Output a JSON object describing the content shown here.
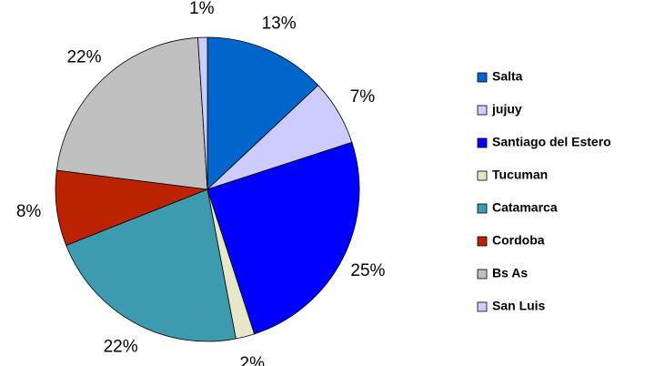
{
  "chart_data": {
    "type": "pie",
    "categories": [
      "Salta",
      "jujuy",
      "Santiago del Estero",
      "Tucuman",
      "Catamarca",
      "Cordoba",
      "Bs As",
      "San Luis"
    ],
    "values": [
      13,
      7,
      25,
      2,
      22,
      8,
      22,
      1
    ],
    "value_labels": [
      "13%",
      "7%",
      "25%",
      "2%",
      "22%",
      "8%",
      "22%",
      "1%"
    ],
    "colors": [
      "#0066cc",
      "#ccccff",
      "#0000ff",
      "#e6e6c8",
      "#3d9bb0",
      "#bb2200",
      "#c0c0c0",
      "#ccccff"
    ],
    "legend": "right"
  }
}
